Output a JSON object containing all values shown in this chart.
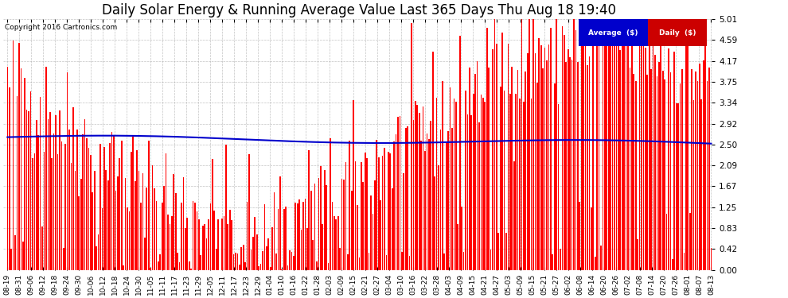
{
  "title": "Daily Solar Energy & Running Average Value Last 365 Days Thu Aug 18 19:40",
  "copyright": "Copyright 2016 Cartronics.com",
  "ylim": [
    0.0,
    5.01
  ],
  "yticks": [
    0.0,
    0.42,
    0.83,
    1.25,
    1.67,
    2.09,
    2.5,
    2.92,
    3.34,
    3.75,
    4.17,
    4.59,
    5.01
  ],
  "bar_color": "#ff0000",
  "avg_line_color": "#0000cc",
  "background_color": "#ffffff",
  "grid_color": "#aaaaaa",
  "legend_avg_color": "#0000cc",
  "legend_daily_color": "#cc0000",
  "legend_avg_text": "Average  ($)",
  "legend_daily_text": "Daily  ($)",
  "n_bars": 365,
  "title_fontsize": 12,
  "tick_fontsize": 7.5,
  "figsize": [
    9.9,
    3.75
  ],
  "dpi": 100,
  "xtick_labels": [
    "08-19",
    "08-31",
    "09-06",
    "09-12",
    "09-18",
    "09-24",
    "09-30",
    "10-06",
    "10-12",
    "10-18",
    "10-24",
    "10-30",
    "11-05",
    "11-11",
    "11-17",
    "11-23",
    "11-29",
    "12-05",
    "12-11",
    "12-17",
    "12-23",
    "12-29",
    "01-04",
    "01-10",
    "01-16",
    "01-22",
    "01-28",
    "02-03",
    "02-09",
    "02-15",
    "02-21",
    "02-27",
    "03-04",
    "03-10",
    "03-16",
    "03-22",
    "03-28",
    "04-03",
    "04-09",
    "04-15",
    "04-21",
    "04-27",
    "05-03",
    "05-09",
    "05-15",
    "05-21",
    "05-27",
    "06-02",
    "06-08",
    "06-14",
    "06-20",
    "06-26",
    "07-02",
    "07-08",
    "07-14",
    "07-20",
    "07-26",
    "08-01",
    "08-07",
    "08-13"
  ]
}
